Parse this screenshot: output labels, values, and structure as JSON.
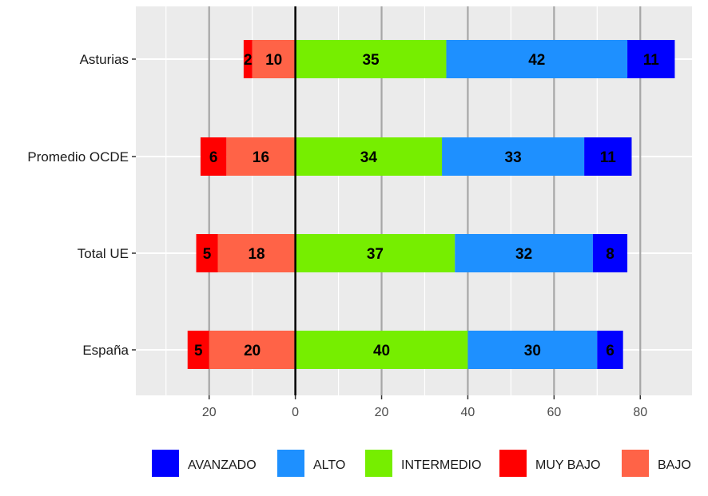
{
  "chart_data": {
    "type": "bar",
    "orientation": "horizontal-diverging",
    "categories": [
      "Asturias",
      "Promedio OCDE",
      "Total UE",
      "España"
    ],
    "negative_series": [
      {
        "name": "MUY BAJO",
        "color": "#ff0000",
        "values": [
          2,
          6,
          5,
          5
        ]
      },
      {
        "name": "BAJO",
        "color": "#ff6347",
        "values": [
          10,
          16,
          18,
          20
        ]
      }
    ],
    "positive_series": [
      {
        "name": "INTERMEDIO",
        "color": "#76ee00",
        "values": [
          35,
          34,
          37,
          40
        ]
      },
      {
        "name": "ALTO",
        "color": "#1e90ff",
        "values": [
          42,
          33,
          32,
          30
        ]
      },
      {
        "name": "AVANZADO",
        "color": "#0000ff",
        "values": [
          11,
          11,
          8,
          6
        ]
      }
    ],
    "x_ticks": [
      {
        "value": -20,
        "label": "20"
      },
      {
        "value": 0,
        "label": "0"
      },
      {
        "value": 20,
        "label": "20"
      },
      {
        "value": 40,
        "label": "40"
      },
      {
        "value": 60,
        "label": "60"
      },
      {
        "value": 80,
        "label": "80"
      }
    ],
    "xlim": [
      -37,
      92
    ],
    "legend": {
      "position": "bottom",
      "order": [
        "AVANZADO",
        "ALTO",
        "INTERMEDIO",
        "MUY BAJO",
        "BAJO"
      ]
    },
    "title": "",
    "xlabel": "",
    "ylabel": "",
    "grid": true,
    "colors": {
      "panel_background": "#ebebeb",
      "grid_line": "#ffffff",
      "major_vline": "#a6a6a6",
      "zero_line": "#000000"
    }
  }
}
